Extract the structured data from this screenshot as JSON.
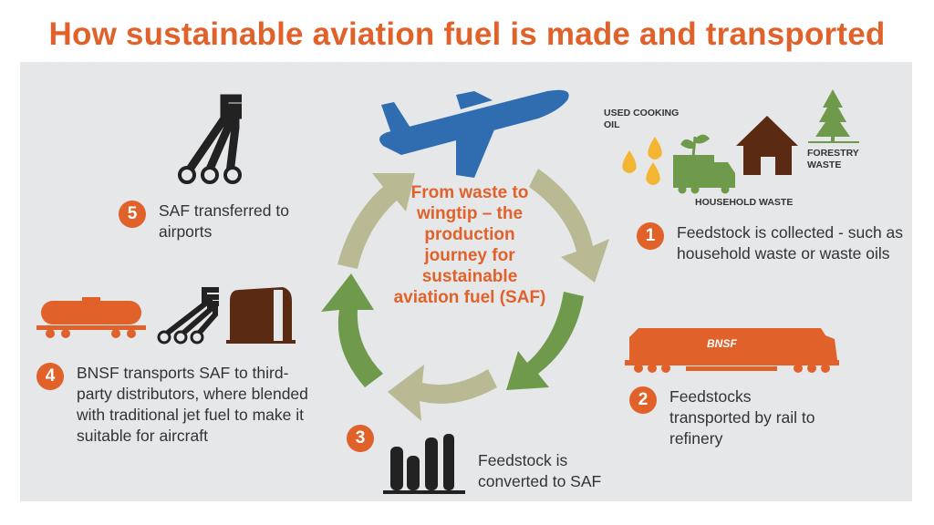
{
  "title": "How sustainable aviation fuel is made and transported",
  "center_text": "From waste to wingtip – the production journey for sustainable aviation fuel (SAF)",
  "feedstock_labels": {
    "used_cooking_oil": "USED COOKING OIL",
    "household_waste": "HOUSEHOLD WASTE",
    "forestry_waste": "FORESTRY WASTE"
  },
  "locomotive_logo": "BNSF",
  "steps": [
    {
      "number": "1",
      "text": "Feedstock is collected - such as household waste or waste oils"
    },
    {
      "number": "2",
      "text": "Feedstocks transported by rail to refinery"
    },
    {
      "number": "3",
      "text": "Feedstock is converted to SAF"
    },
    {
      "number": "4",
      "text": "BNSF transports SAF to third-party distributors, where blended with traditional jet fuel to make it suitable for aircraft"
    },
    {
      "number": "5",
      "text": "SAF transferred to airports"
    }
  ],
  "colors": {
    "accent": "#e0622a",
    "arrow_light": "#b9b993",
    "arrow_dark": "#6f9a4b",
    "plane": "#2f6db0",
    "brown": "#5b2a12",
    "oil": "#f2b632"
  }
}
